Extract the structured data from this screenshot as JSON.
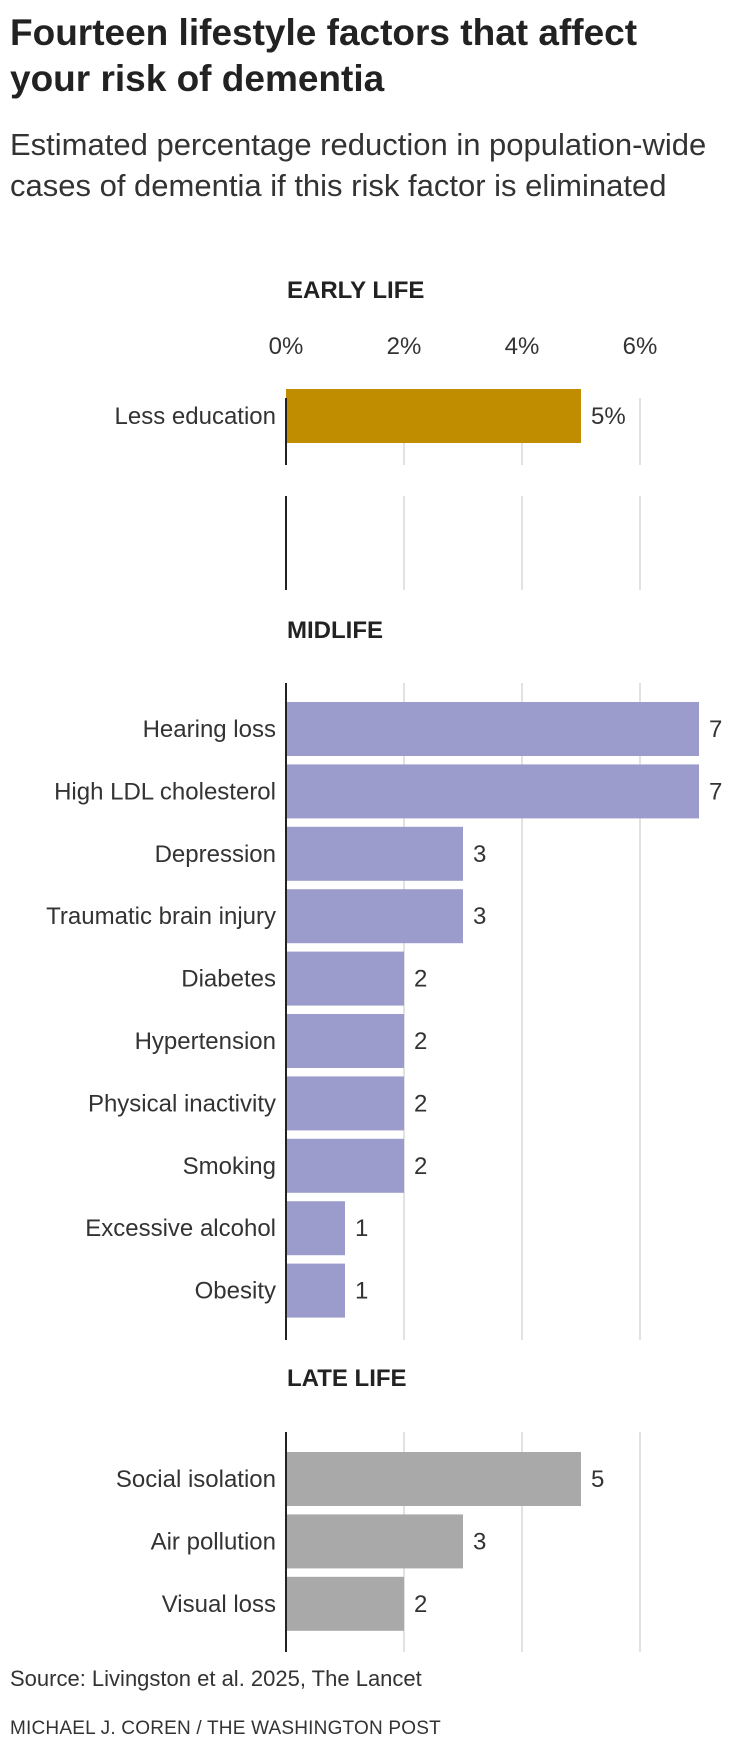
{
  "header": {
    "title": "Fourteen lifestyle factors that affect your risk of dementia",
    "subtitle": "Estimated percentage reduction in population-wide cases of dementia if this risk factor is eliminated"
  },
  "chart_data": {
    "type": "bar",
    "orientation": "horizontal",
    "x_ticks": [
      "0%",
      "2%",
      "4%",
      "6%"
    ],
    "x_tick_values": [
      0,
      2,
      4,
      6
    ],
    "xlim": [
      0,
      7
    ],
    "grid": true,
    "groups": [
      {
        "name": "EARLY LIFE",
        "color": "#c18d00",
        "categories": [
          "Less education"
        ],
        "values": [
          5
        ],
        "labels": [
          "5%"
        ]
      },
      {
        "name": "MIDLIFE",
        "color": "#9b9ccc",
        "categories": [
          "Hearing loss",
          "High LDL cholesterol",
          "Depression",
          "Traumatic brain injury",
          "Diabetes",
          "Hypertension",
          "Physical inactivity",
          "Smoking",
          "Excessive alcohol",
          "Obesity"
        ],
        "values": [
          7,
          7,
          3,
          3,
          2,
          2,
          2,
          2,
          1,
          1
        ],
        "labels": [
          "7",
          "7",
          "3",
          "3",
          "2",
          "2",
          "2",
          "2",
          "1",
          "1"
        ]
      },
      {
        "name": "LATE LIFE",
        "color": "#a9a9a9",
        "categories": [
          "Social isolation",
          "Air pollution",
          "Visual loss"
        ],
        "values": [
          5,
          3,
          2
        ],
        "labels": [
          "5",
          "3",
          "2"
        ]
      }
    ]
  },
  "footer": {
    "source": "Source: Livingston et al. 2025, The Lancet",
    "credit": "MICHAEL J. COREN / THE WASHINGTON POST"
  }
}
